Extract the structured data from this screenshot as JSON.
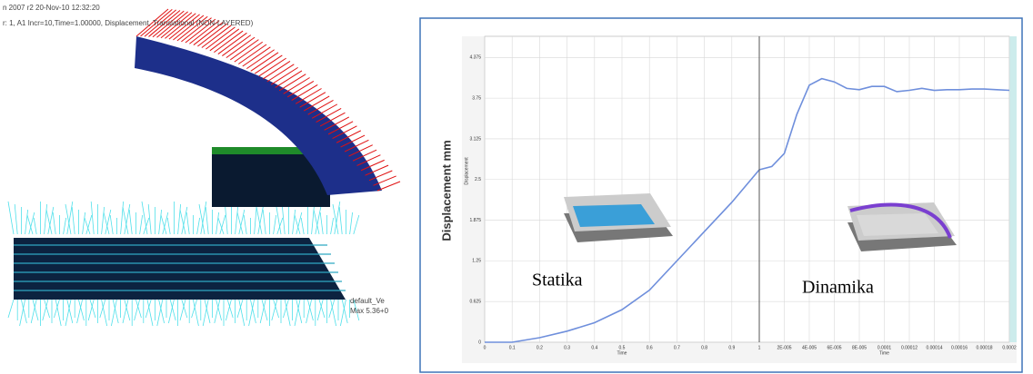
{
  "render": {
    "header_lines": [
      "n 2007 r2 20-Nov-10 12:32:20",
      "r: 1, A1 Incr=10,Time=1.00000, Displacement, Translational (NON-LAYERED)"
    ],
    "legend_lines": [
      "default_Ve",
      "Max 5.36+0"
    ]
  },
  "outer_ylabel": "Displacement mm",
  "chart_data": [
    {
      "type": "line",
      "ylabel": "Displacement",
      "xlabel": "Time",
      "annotation": "Statika",
      "x": [
        0,
        0.1,
        0.2,
        0.3,
        0.4,
        0.5,
        0.6,
        0.7,
        0.8,
        0.9,
        1
      ],
      "series": [
        {
          "color": "#6f8fdc",
          "values": [
            0,
            0,
            0.07,
            0.17,
            0.3,
            0.5,
            0.8,
            1.25,
            1.7,
            2.15,
            2.65
          ]
        }
      ],
      "xlim": [
        0,
        1
      ],
      "xticks": [
        0,
        0.1,
        0.2,
        0.3,
        0.4,
        0.5,
        0.6,
        0.7,
        0.8,
        0.9,
        1
      ],
      "ylim": [
        0,
        4.7
      ],
      "yticks": [
        0,
        0.625,
        1.25,
        1.875,
        2.5,
        3.125,
        3.75,
        4.375
      ],
      "grid": true
    },
    {
      "type": "line",
      "xlabel": "Time",
      "annotation": "Dinamika",
      "x": [
        0,
        1e-05,
        2e-05,
        3e-05,
        4e-05,
        5e-05,
        6e-05,
        7e-05,
        8e-05,
        9e-05,
        0.0001,
        0.00011,
        0.00012,
        0.00013,
        0.00014,
        0.00015,
        0.00016,
        0.00017,
        0.00018,
        0.00019,
        0.0002
      ],
      "series": [
        {
          "color": "#6f8fdc",
          "values": [
            2.65,
            2.7,
            2.9,
            3.5,
            3.95,
            4.05,
            4.0,
            3.9,
            3.88,
            3.93,
            3.93,
            3.85,
            3.87,
            3.9,
            3.87,
            3.88,
            3.88,
            3.89,
            3.89,
            3.88,
            3.87
          ]
        }
      ],
      "xlim": [
        0,
        0.0002
      ],
      "xticks": [
        {
          "value": 2e-05,
          "label": "2E-005"
        },
        {
          "value": 4e-05,
          "label": "4E-005"
        },
        {
          "value": 6e-05,
          "label": "6E-005"
        },
        {
          "value": 8e-05,
          "label": "8E-005"
        },
        0.0001,
        0.00012,
        0.00014,
        0.00016,
        0.00018,
        0.0002
      ],
      "ylim": [
        0,
        4.7
      ],
      "yticks": [
        0,
        0.625,
        1.25,
        1.875,
        2.5,
        3.125,
        3.75,
        4.375
      ],
      "grid": true
    }
  ]
}
